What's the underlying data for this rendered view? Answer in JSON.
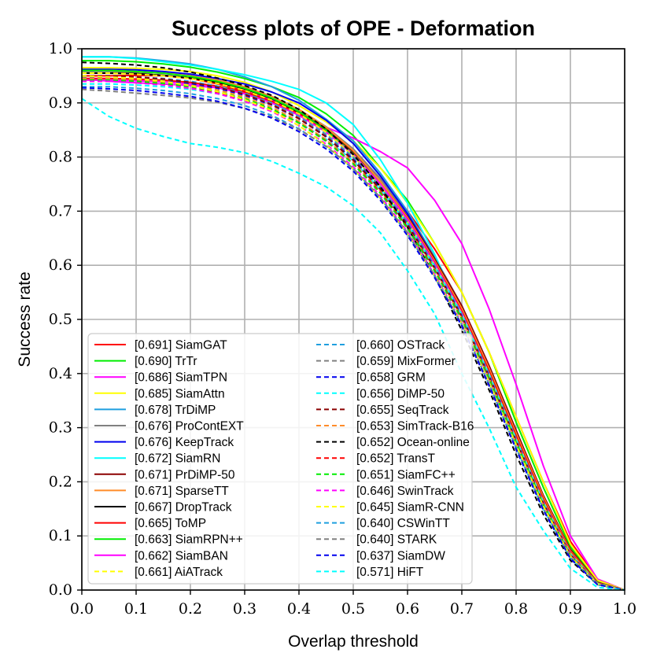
{
  "chart_data": {
    "type": "line",
    "title": "Success plots of OPE - Deformation",
    "xlabel": "Overlap threshold",
    "ylabel": "Success rate",
    "xlim": [
      0,
      1
    ],
    "ylim": [
      0,
      1
    ],
    "xticks": [
      "0.0",
      "0.1",
      "0.2",
      "0.3",
      "0.4",
      "0.5",
      "0.6",
      "0.7",
      "0.8",
      "0.9",
      "1.0"
    ],
    "yticks": [
      "0.0",
      "0.1",
      "0.2",
      "0.3",
      "0.4",
      "0.5",
      "0.6",
      "0.7",
      "0.8",
      "0.9",
      "1.0"
    ],
    "grid": true,
    "legend_position": "lower-left",
    "x": [
      0,
      0.05,
      0.1,
      0.15,
      0.2,
      0.25,
      0.3,
      0.35,
      0.4,
      0.45,
      0.5,
      0.55,
      0.6,
      0.65,
      0.7,
      0.75,
      0.8,
      0.85,
      0.9,
      0.95,
      1.0
    ],
    "series": [
      {
        "name": "SiamGAT",
        "legend": "[0.691] SiamGAT",
        "color": "#ff0000",
        "dash": "solid",
        "values": [
          0.95,
          0.95,
          0.951,
          0.95,
          0.945,
          0.935,
          0.922,
          0.905,
          0.882,
          0.85,
          0.81,
          0.76,
          0.7,
          0.63,
          0.55,
          0.44,
          0.32,
          0.2,
          0.09,
          0.02,
          0.0
        ]
      },
      {
        "name": "TrTr",
        "legend": "[0.690] TrTr",
        "color": "#00ee00",
        "dash": "solid",
        "values": [
          0.978,
          0.978,
          0.976,
          0.972,
          0.966,
          0.957,
          0.945,
          0.93,
          0.91,
          0.88,
          0.84,
          0.78,
          0.72,
          0.64,
          0.55,
          0.44,
          0.31,
          0.19,
          0.08,
          0.015,
          0.0
        ]
      },
      {
        "name": "SiamTPN",
        "legend": "[0.686] SiamTPN",
        "color": "#ff00ff",
        "dash": "solid",
        "values": [
          0.945,
          0.94,
          0.937,
          0.935,
          0.932,
          0.928,
          0.92,
          0.905,
          0.88,
          0.855,
          0.835,
          0.81,
          0.78,
          0.72,
          0.64,
          0.52,
          0.38,
          0.23,
          0.1,
          0.02,
          0.0
        ]
      },
      {
        "name": "SiamAttn",
        "legend": "[0.685] SiamAttn",
        "color": "#ffff00",
        "dash": "solid",
        "values": [
          0.965,
          0.965,
          0.964,
          0.962,
          0.958,
          0.95,
          0.938,
          0.92,
          0.895,
          0.865,
          0.83,
          0.78,
          0.715,
          0.64,
          0.55,
          0.44,
          0.32,
          0.2,
          0.085,
          0.018,
          0.0
        ]
      },
      {
        "name": "TrDiMP",
        "legend": "[0.678] TrDiMP",
        "color": "#1f9fdf",
        "dash": "solid",
        "values": [
          0.985,
          0.985,
          0.983,
          0.978,
          0.972,
          0.962,
          0.948,
          0.93,
          0.905,
          0.87,
          0.83,
          0.77,
          0.7,
          0.615,
          0.52,
          0.41,
          0.29,
          0.17,
          0.07,
          0.012,
          0.0
        ]
      },
      {
        "name": "ProContEXT",
        "legend": "[0.676] ProContEXT",
        "color": "#808080",
        "dash": "solid",
        "values": [
          0.958,
          0.958,
          0.957,
          0.955,
          0.95,
          0.942,
          0.93,
          0.912,
          0.888,
          0.856,
          0.815,
          0.76,
          0.695,
          0.615,
          0.525,
          0.415,
          0.295,
          0.175,
          0.075,
          0.014,
          0.0
        ]
      },
      {
        "name": "KeepTrack",
        "legend": "[0.676] KeepTrack",
        "color": "#0000ee",
        "dash": "solid",
        "values": [
          0.962,
          0.962,
          0.961,
          0.958,
          0.953,
          0.945,
          0.935,
          0.92,
          0.9,
          0.868,
          0.825,
          0.765,
          0.695,
          0.612,
          0.52,
          0.41,
          0.29,
          0.17,
          0.07,
          0.013,
          0.0
        ]
      },
      {
        "name": "SiamRN",
        "legend": "[0.672] SiamRN",
        "color": "#00ffff",
        "dash": "solid",
        "values": [
          0.985,
          0.985,
          0.982,
          0.976,
          0.97,
          0.962,
          0.952,
          0.94,
          0.925,
          0.9,
          0.86,
          0.795,
          0.715,
          0.62,
          0.51,
          0.39,
          0.265,
          0.15,
          0.06,
          0.01,
          0.0
        ]
      },
      {
        "name": "PrDiMP-50",
        "legend": "[0.671] PrDiMP-50",
        "color": "#8b0000",
        "dash": "solid",
        "values": [
          0.955,
          0.955,
          0.954,
          0.951,
          0.946,
          0.938,
          0.926,
          0.908,
          0.884,
          0.852,
          0.81,
          0.755,
          0.69,
          0.612,
          0.525,
          0.415,
          0.295,
          0.175,
          0.075,
          0.014,
          0.0
        ]
      },
      {
        "name": "SparseTT",
        "legend": "[0.671] SparseTT",
        "color": "#ff8c2a",
        "dash": "solid",
        "values": [
          0.96,
          0.96,
          0.958,
          0.955,
          0.95,
          0.942,
          0.93,
          0.912,
          0.888,
          0.855,
          0.812,
          0.755,
          0.688,
          0.608,
          0.52,
          0.41,
          0.29,
          0.172,
          0.072,
          0.013,
          0.0
        ]
      },
      {
        "name": "DropTrack",
        "legend": "[0.667] DropTrack",
        "color": "#000000",
        "dash": "solid",
        "values": [
          0.955,
          0.955,
          0.954,
          0.951,
          0.946,
          0.938,
          0.926,
          0.908,
          0.882,
          0.848,
          0.804,
          0.748,
          0.682,
          0.602,
          0.512,
          0.402,
          0.282,
          0.165,
          0.068,
          0.012,
          0.0
        ]
      },
      {
        "name": "ToMP",
        "legend": "[0.665] ToMP",
        "color": "#ff0000",
        "dash": "solid",
        "values": [
          0.945,
          0.945,
          0.944,
          0.942,
          0.938,
          0.931,
          0.92,
          0.903,
          0.88,
          0.848,
          0.806,
          0.75,
          0.685,
          0.605,
          0.515,
          0.405,
          0.285,
          0.168,
          0.07,
          0.013,
          0.0
        ]
      },
      {
        "name": "SiamRPN++",
        "legend": "[0.663] SiamRPN++",
        "color": "#00ee00",
        "dash": "solid",
        "values": [
          0.96,
          0.96,
          0.958,
          0.955,
          0.949,
          0.94,
          0.927,
          0.909,
          0.884,
          0.85,
          0.806,
          0.75,
          0.683,
          0.602,
          0.51,
          0.398,
          0.278,
          0.162,
          0.066,
          0.012,
          0.0
        ]
      },
      {
        "name": "SiamBAN",
        "legend": "[0.662] SiamBAN",
        "color": "#ff00ff",
        "dash": "solid",
        "values": [
          0.942,
          0.942,
          0.941,
          0.939,
          0.935,
          0.928,
          0.917,
          0.9,
          0.877,
          0.846,
          0.805,
          0.75,
          0.684,
          0.603,
          0.512,
          0.4,
          0.28,
          0.164,
          0.068,
          0.012,
          0.0
        ]
      },
      {
        "name": "AiATrack",
        "legend": "[0.661] AiATrack",
        "color": "#ffff00",
        "dash": "dashed",
        "values": [
          0.955,
          0.955,
          0.953,
          0.95,
          0.945,
          0.936,
          0.923,
          0.905,
          0.88,
          0.846,
          0.802,
          0.746,
          0.68,
          0.6,
          0.51,
          0.4,
          0.28,
          0.164,
          0.068,
          0.012,
          0.0
        ]
      },
      {
        "name": "OSTrack",
        "legend": "[0.660] OSTrack",
        "color": "#1f9fdf",
        "dash": "dashed",
        "values": [
          0.95,
          0.95,
          0.948,
          0.945,
          0.94,
          0.931,
          0.918,
          0.9,
          0.875,
          0.842,
          0.8,
          0.745,
          0.68,
          0.6,
          0.51,
          0.4,
          0.28,
          0.163,
          0.067,
          0.012,
          0.0
        ]
      },
      {
        "name": "MixFormer",
        "legend": "[0.659] MixFormer",
        "color": "#808080",
        "dash": "dashed",
        "values": [
          0.948,
          0.948,
          0.946,
          0.943,
          0.938,
          0.929,
          0.916,
          0.898,
          0.873,
          0.84,
          0.798,
          0.743,
          0.678,
          0.598,
          0.508,
          0.398,
          0.278,
          0.162,
          0.066,
          0.012,
          0.0
        ]
      },
      {
        "name": "GRM",
        "legend": "[0.658] GRM",
        "color": "#0000ee",
        "dash": "dashed",
        "values": [
          0.945,
          0.945,
          0.943,
          0.94,
          0.935,
          0.927,
          0.914,
          0.896,
          0.871,
          0.838,
          0.796,
          0.742,
          0.676,
          0.596,
          0.506,
          0.396,
          0.276,
          0.16,
          0.065,
          0.011,
          0.0
        ]
      },
      {
        "name": "DiMP-50",
        "legend": "[0.656] DiMP-50",
        "color": "#00ffff",
        "dash": "dashed",
        "values": [
          0.935,
          0.935,
          0.933,
          0.93,
          0.925,
          0.917,
          0.905,
          0.888,
          0.864,
          0.833,
          0.793,
          0.74,
          0.675,
          0.597,
          0.508,
          0.398,
          0.278,
          0.162,
          0.066,
          0.012,
          0.0
        ]
      },
      {
        "name": "SeqTrack",
        "legend": "[0.655] SeqTrack",
        "color": "#8b0000",
        "dash": "dashed",
        "values": [
          0.95,
          0.95,
          0.948,
          0.944,
          0.938,
          0.929,
          0.916,
          0.897,
          0.871,
          0.837,
          0.794,
          0.74,
          0.674,
          0.594,
          0.504,
          0.394,
          0.275,
          0.16,
          0.065,
          0.011,
          0.0
        ]
      },
      {
        "name": "SimTrack-B16",
        "legend": "[0.653] SimTrack-B16",
        "color": "#ff8c2a",
        "dash": "dashed",
        "values": [
          0.945,
          0.945,
          0.943,
          0.939,
          0.933,
          0.924,
          0.911,
          0.892,
          0.866,
          0.832,
          0.79,
          0.736,
          0.67,
          0.592,
          0.502,
          0.392,
          0.273,
          0.158,
          0.064,
          0.011,
          0.0
        ]
      },
      {
        "name": "Ocean-online",
        "legend": "[0.652] Ocean-online",
        "color": "#000000",
        "dash": "dashed",
        "values": [
          0.975,
          0.973,
          0.97,
          0.965,
          0.957,
          0.946,
          0.932,
          0.914,
          0.888,
          0.852,
          0.805,
          0.745,
          0.67,
          0.58,
          0.48,
          0.37,
          0.25,
          0.14,
          0.055,
          0.01,
          0.0
        ]
      },
      {
        "name": "TransT",
        "legend": "[0.652] TransT",
        "color": "#ff0000",
        "dash": "dashed",
        "values": [
          0.94,
          0.94,
          0.938,
          0.934,
          0.928,
          0.919,
          0.906,
          0.888,
          0.863,
          0.83,
          0.788,
          0.735,
          0.67,
          0.591,
          0.502,
          0.392,
          0.273,
          0.158,
          0.064,
          0.011,
          0.0
        ]
      },
      {
        "name": "SiamFC++",
        "legend": "[0.651] SiamFC++",
        "color": "#00ee00",
        "dash": "dashed",
        "values": [
          0.942,
          0.942,
          0.94,
          0.936,
          0.93,
          0.921,
          0.908,
          0.889,
          0.863,
          0.829,
          0.787,
          0.733,
          0.668,
          0.589,
          0.5,
          0.39,
          0.272,
          0.157,
          0.063,
          0.011,
          0.0
        ]
      },
      {
        "name": "SwinTrack",
        "legend": "[0.646] SwinTrack",
        "color": "#ff00ff",
        "dash": "dashed",
        "values": [
          0.94,
          0.94,
          0.937,
          0.933,
          0.927,
          0.917,
          0.903,
          0.884,
          0.858,
          0.824,
          0.782,
          0.728,
          0.662,
          0.583,
          0.494,
          0.385,
          0.268,
          0.155,
          0.062,
          0.011,
          0.0
        ]
      },
      {
        "name": "SiamR-CNN",
        "legend": "[0.645] SiamR-CNN",
        "color": "#ffff00",
        "dash": "dashed",
        "values": [
          0.95,
          0.948,
          0.945,
          0.94,
          0.932,
          0.921,
          0.906,
          0.886,
          0.858,
          0.822,
          0.778,
          0.724,
          0.658,
          0.58,
          0.492,
          0.384,
          0.268,
          0.155,
          0.062,
          0.011,
          0.0
        ]
      },
      {
        "name": "CSWinTT",
        "legend": "[0.640] CSWinTT",
        "color": "#1f9fdf",
        "dash": "dashed",
        "values": [
          0.93,
          0.93,
          0.927,
          0.923,
          0.917,
          0.908,
          0.895,
          0.877,
          0.852,
          0.819,
          0.778,
          0.724,
          0.658,
          0.58,
          0.49,
          0.38,
          0.262,
          0.15,
          0.06,
          0.01,
          0.0
        ]
      },
      {
        "name": "STARK",
        "legend": "[0.640] STARK",
        "color": "#808080",
        "dash": "dashed",
        "values": [
          0.925,
          0.922,
          0.918,
          0.914,
          0.909,
          0.901,
          0.89,
          0.874,
          0.851,
          0.82,
          0.779,
          0.725,
          0.66,
          0.581,
          0.491,
          0.381,
          0.263,
          0.15,
          0.06,
          0.01,
          0.0
        ]
      },
      {
        "name": "SiamDW",
        "legend": "[0.637] SiamDW",
        "color": "#0000ee",
        "dash": "dashed",
        "values": [
          0.928,
          0.926,
          0.923,
          0.918,
          0.912,
          0.903,
          0.89,
          0.872,
          0.847,
          0.815,
          0.774,
          0.72,
          0.655,
          0.577,
          0.488,
          0.378,
          0.26,
          0.148,
          0.058,
          0.01,
          0.0
        ]
      },
      {
        "name": "HiFT",
        "legend": "[0.571] HiFT",
        "color": "#00ffff",
        "dash": "dashed",
        "values": [
          0.908,
          0.875,
          0.853,
          0.838,
          0.825,
          0.818,
          0.808,
          0.792,
          0.77,
          0.745,
          0.71,
          0.66,
          0.59,
          0.51,
          0.4,
          0.3,
          0.19,
          0.11,
          0.04,
          0.005,
          0.0
        ]
      }
    ]
  }
}
